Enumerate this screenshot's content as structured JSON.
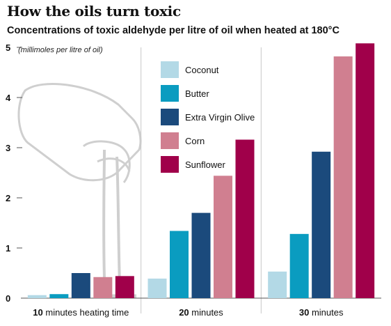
{
  "title": "How the oils turn toxic",
  "subtitle": "Concentrations of toxic aldehyde per litre of oil when heated at 180°C",
  "chart_data": {
    "type": "bar",
    "title": "How the oils turn toxic",
    "subtitle": "Concentrations of toxic aldehyde per litre of oil when heated at 180°C",
    "ylabel": "(millimoles per litre of oil)",
    "ylim": [
      0,
      5
    ],
    "yticks": [
      0,
      1,
      2,
      3,
      4,
      5
    ],
    "categories": [
      {
        "bold": "10",
        "rest": " minutes heating time"
      },
      {
        "bold": "20",
        "rest": " minutes"
      },
      {
        "bold": "30",
        "rest": " minutes"
      }
    ],
    "series": [
      {
        "name": "Coconut",
        "color": "#b3d9e6",
        "values": [
          0.06,
          0.39,
          0.53
        ]
      },
      {
        "name": "Butter",
        "color": "#0a9cc0",
        "values": [
          0.08,
          1.34,
          1.28
        ]
      },
      {
        "name": "Extra Virgin Olive",
        "color": "#1b4a7c",
        "values": [
          0.5,
          1.7,
          2.92
        ]
      },
      {
        "name": "Corn",
        "color": "#d07f90",
        "values": [
          0.42,
          2.44,
          4.82
        ]
      },
      {
        "name": "Sunflower",
        "color": "#a0004a",
        "values": [
          0.44,
          3.16,
          5.08
        ]
      }
    ],
    "grid": "vertical dividers between categories",
    "legend": "top-center, inside plot"
  }
}
